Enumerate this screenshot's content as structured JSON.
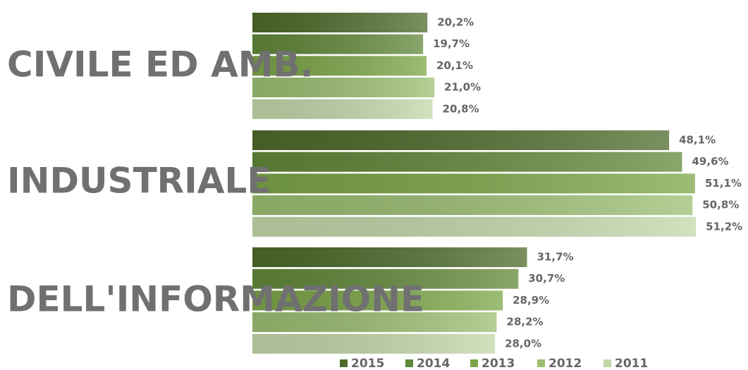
{
  "chart_data": {
    "type": "bar",
    "orientation": "horizontal",
    "categories": [
      "CIVILE ED AMB.",
      "INDUSTRIALE",
      "DELL'INFORMAZIONE"
    ],
    "series": [
      {
        "name": "2015",
        "color": "#4e6b2b",
        "values": [
          20.2,
          48.1,
          31.7
        ],
        "value_labels": [
          "20,2%",
          "48,1%",
          "31,7%"
        ]
      },
      {
        "name": "2014",
        "color": "#62893a",
        "values": [
          19.7,
          49.6,
          30.7
        ],
        "value_labels": [
          "19,7%",
          "49,6%",
          "30,7%"
        ]
      },
      {
        "name": "2013",
        "color": "#7ca647",
        "values": [
          20.1,
          51.1,
          28.9
        ],
        "value_labels": [
          "20,1%",
          "51,1%",
          "28,9%"
        ]
      },
      {
        "name": "2012",
        "color": "#9cbf72",
        "values": [
          21.0,
          50.8,
          28.2
        ],
        "value_labels": [
          "21,0%",
          "50,8%",
          "28,2%"
        ]
      },
      {
        "name": "2011",
        "color": "#c3d8aa",
        "values": [
          20.8,
          51.2,
          28.0
        ],
        "value_labels": [
          "20,8%",
          "51,2%",
          "28,0%"
        ]
      }
    ],
    "xlim": [
      0,
      52
    ],
    "legend": "bottom"
  }
}
